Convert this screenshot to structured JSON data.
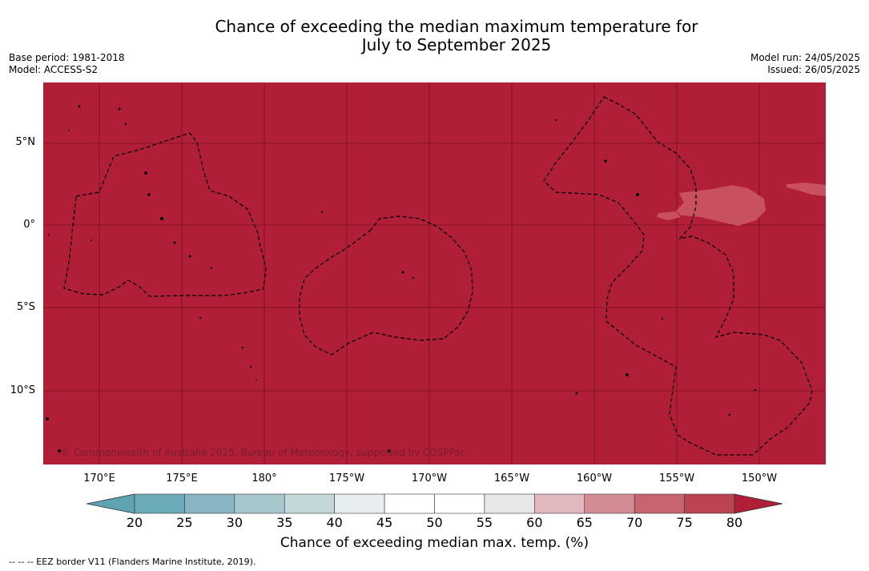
{
  "title_line1": "Chance of exceeding the median maximum temperature for",
  "title_line2": "July to September 2025",
  "base_period": "Base period: 1981-2018",
  "model": "Model: ACCESS-S2",
  "model_run": "Model run: 24/05/2025",
  "issued": "Issued: 26/05/2025",
  "lat_labels": [
    "5°N",
    "0°",
    "5°S",
    "10°S"
  ],
  "lon_labels": [
    "170°E",
    "175°E",
    "180°",
    "175°W",
    "170°W",
    "165°W",
    "160°W",
    "155°W",
    "150°W"
  ],
  "copyright": "© Commonwealth of Australia 2025, Bureau of Meteorology, supported by COSPPac",
  "colorbar": {
    "ticks": [
      "20",
      "25",
      "30",
      "35",
      "40",
      "45",
      "50",
      "55",
      "60",
      "65",
      "70",
      "75",
      "80"
    ],
    "colors": [
      "#6aaab9",
      "#88b5c1",
      "#a6c7cc",
      "#c4d8dc",
      "#e8eef0",
      "#ffffff",
      "#ffffff",
      "#e8e6e7",
      "#e0b8be",
      "#d38c94",
      "#c8646f",
      "#bc4351"
    ],
    "low_color": "#5fa3b3",
    "high_color": "#b01e38",
    "label": "Chance of exceeding median max. temp. (%)"
  },
  "footer": "--  --  -- EEZ border V11 (Flanders Marine Institute, 2019).",
  "map_colors": {
    "background": "#b01e38",
    "patch": "#c9515f"
  }
}
